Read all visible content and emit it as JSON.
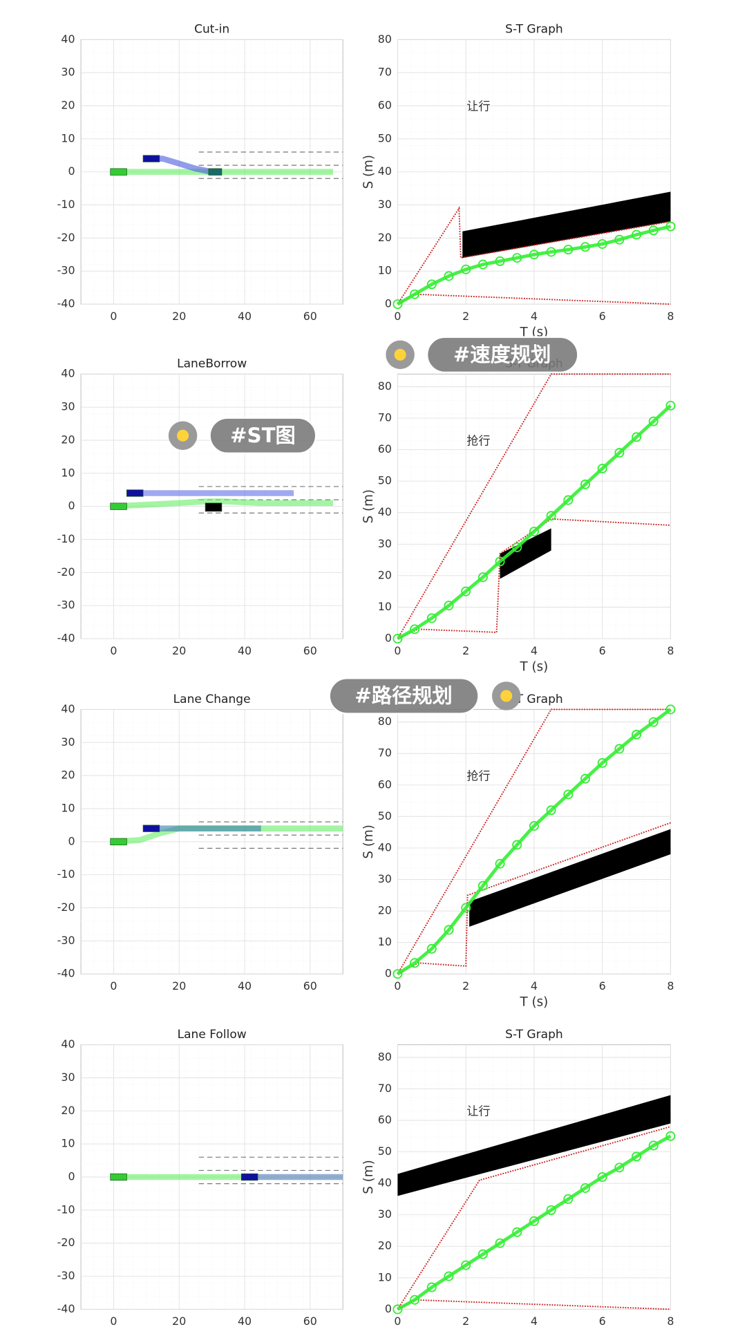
{
  "chart_data": [
    {
      "type": "path",
      "title": "Cut-in",
      "xlim": [
        -10,
        70
      ],
      "ylim": [
        -40,
        40
      ],
      "xticks": [
        0,
        20,
        40,
        60
      ],
      "yticks": [
        -40,
        -30,
        -20,
        -10,
        0,
        10,
        20,
        30,
        40
      ],
      "grid": true,
      "lane_lines": [
        6,
        2,
        -2
      ],
      "series": [
        {
          "color": "#66ee66",
          "x": [
            0,
            67
          ],
          "values": [
            0,
            0
          ]
        },
        {
          "color": "#4a5ae0",
          "x": [
            10,
            15,
            20,
            25,
            30,
            33
          ],
          "values": [
            4,
            4,
            2.5,
            1,
            0,
            0
          ]
        }
      ],
      "boxes": [
        {
          "color": "#33cc33",
          "x": [
            -1,
            4
          ],
          "y": [
            -1,
            1
          ]
        },
        {
          "color": "#1010a0",
          "x": [
            9,
            14
          ],
          "y": [
            3,
            5
          ]
        },
        {
          "color": "#1a6a6a",
          "x": [
            29,
            33
          ],
          "y": [
            -1,
            1
          ]
        }
      ]
    },
    {
      "type": "st",
      "title": "S-T Graph",
      "annotation": "让行",
      "xlabel": "T (s)",
      "ylabel": "S (m)",
      "xlim": [
        0,
        8
      ],
      "ylim": [
        0,
        80
      ],
      "xticks": [
        0,
        2,
        4,
        6,
        8
      ],
      "yticks": [
        0,
        10,
        20,
        30,
        40,
        50,
        60,
        70,
        80
      ],
      "grid": true,
      "series": [
        {
          "color": "#cc2222",
          "x": [
            0,
            1.8,
            1.85,
            8
          ],
          "values": [
            0,
            29,
            14,
            25
          ]
        },
        {
          "color": "#cc2222",
          "x": [
            0,
            0.5,
            8
          ],
          "values": [
            0,
            3,
            0
          ]
        },
        {
          "color": "#33ee33",
          "marker": "circle",
          "x": [
            0,
            0.5,
            1,
            1.5,
            2,
            2.5,
            3,
            3.5,
            4,
            4.5,
            5,
            5.5,
            6,
            6.5,
            7,
            7.5,
            8
          ],
          "values": [
            0,
            3,
            6,
            8.5,
            10.5,
            12,
            13,
            14,
            15,
            15.8,
            16.5,
            17.3,
            18.2,
            19.5,
            21,
            22.3,
            23.5
          ]
        }
      ],
      "obstacles": [
        {
          "color": "#000000",
          "t": [
            1.9,
            8,
            8,
            1.9
          ],
          "s": [
            22,
            34,
            25,
            14
          ]
        }
      ]
    },
    {
      "type": "path",
      "title": "LaneBorrow",
      "xlim": [
        -10,
        70
      ],
      "ylim": [
        -40,
        40
      ],
      "xticks": [
        0,
        20,
        40,
        60
      ],
      "yticks": [
        -40,
        -30,
        -20,
        -10,
        0,
        10,
        20,
        30,
        40
      ],
      "grid": true,
      "lane_lines": [
        6,
        2,
        -2
      ],
      "series": [
        {
          "color": "#66ee66",
          "x": [
            0,
            20,
            28,
            34,
            45,
            67
          ],
          "values": [
            0,
            1,
            1.5,
            1.5,
            1,
            1
          ]
        },
        {
          "color": "#6070e8",
          "x": [
            4,
            55
          ],
          "values": [
            4,
            4
          ]
        }
      ],
      "boxes": [
        {
          "color": "#33cc33",
          "x": [
            -1,
            4
          ],
          "y": [
            -1,
            1
          ]
        },
        {
          "color": "#1010a0",
          "x": [
            4,
            9
          ],
          "y": [
            3,
            5
          ]
        },
        {
          "color": "#000000",
          "x": [
            28,
            33
          ],
          "y": [
            -1.5,
            1
          ]
        }
      ]
    },
    {
      "type": "st",
      "title": "S-T Graph",
      "annotation": "抢行",
      "xlabel": "T (s)",
      "ylabel": "S (m)",
      "xlim": [
        0,
        8
      ],
      "ylim": [
        0,
        84
      ],
      "xticks": [
        0,
        2,
        4,
        6,
        8
      ],
      "yticks": [
        0,
        10,
        20,
        30,
        40,
        50,
        60,
        70,
        80
      ],
      "grid": true,
      "series": [
        {
          "color": "#cc2222",
          "x": [
            0,
            4.5,
            8
          ],
          "values": [
            0,
            84,
            84
          ]
        },
        {
          "color": "#cc2222",
          "x": [
            0,
            0.6,
            2.9,
            3,
            4.5,
            8
          ],
          "values": [
            0,
            3,
            2,
            27,
            38,
            36
          ]
        },
        {
          "color": "#33ee33",
          "marker": "circle",
          "x": [
            0,
            0.5,
            1,
            1.5,
            2,
            2.5,
            3,
            3.5,
            4,
            4.5,
            5,
            5.5,
            6,
            6.5,
            7,
            7.5,
            8
          ],
          "values": [
            0,
            3,
            6.5,
            10.5,
            15,
            19.5,
            24.5,
            29,
            34,
            39,
            44,
            49,
            54,
            59,
            64,
            69,
            74
          ]
        }
      ],
      "obstacles": [
        {
          "color": "#000000",
          "t": [
            3,
            4.5,
            4.5,
            3
          ],
          "s": [
            27,
            35,
            28,
            19
          ]
        }
      ]
    },
    {
      "type": "path",
      "title": "Lane Change",
      "xlim": [
        -10,
        70
      ],
      "ylim": [
        -40,
        40
      ],
      "xticks": [
        0,
        20,
        40,
        60
      ],
      "yticks": [
        -40,
        -30,
        -20,
        -10,
        0,
        10,
        20,
        30,
        40
      ],
      "grid": true,
      "lane_lines": [
        6,
        2,
        -2
      ],
      "series": [
        {
          "color": "#66ee66",
          "x": [
            0,
            8,
            14,
            20,
            70
          ],
          "values": [
            0,
            0.5,
            2.5,
            4,
            4
          ]
        },
        {
          "color": "#3a7ab0",
          "x": [
            9,
            45
          ],
          "values": [
            4,
            4
          ]
        }
      ],
      "boxes": [
        {
          "color": "#33cc33",
          "x": [
            -1,
            4
          ],
          "y": [
            -1,
            1
          ]
        },
        {
          "color": "#1010a0",
          "x": [
            9,
            14
          ],
          "y": [
            3,
            5
          ]
        }
      ]
    },
    {
      "type": "st",
      "title": "S-T Graph",
      "annotation": "抢行",
      "xlabel": "T (s)",
      "ylabel": "S (m)",
      "xlim": [
        0,
        8
      ],
      "ylim": [
        0,
        84
      ],
      "xticks": [
        0,
        2,
        4,
        6,
        8
      ],
      "yticks": [
        0,
        10,
        20,
        30,
        40,
        50,
        60,
        70,
        80
      ],
      "grid": true,
      "series": [
        {
          "color": "#cc2222",
          "x": [
            0,
            4.5,
            8
          ],
          "values": [
            0,
            84,
            84
          ]
        },
        {
          "color": "#cc2222",
          "x": [
            0,
            0.6,
            2,
            2.05,
            8
          ],
          "values": [
            0,
            3.5,
            2.5,
            25,
            48
          ]
        },
        {
          "color": "#33ee33",
          "marker": "circle",
          "x": [
            0,
            0.5,
            1,
            1.5,
            2,
            2.5,
            3,
            3.5,
            4,
            4.5,
            5,
            5.5,
            6,
            6.5,
            7,
            7.5,
            8
          ],
          "values": [
            0,
            3.5,
            8,
            14,
            21,
            28,
            35,
            41,
            47,
            52,
            57,
            62,
            67,
            71.5,
            76,
            80,
            84
          ]
        }
      ],
      "obstacles": [
        {
          "color": "#000000",
          "t": [
            2.1,
            8,
            8,
            2.1
          ],
          "s": [
            23,
            46,
            38,
            15
          ]
        }
      ]
    },
    {
      "type": "path",
      "title": "Lane Follow",
      "xlim": [
        -10,
        70
      ],
      "ylim": [
        -40,
        40
      ],
      "xticks": [
        0,
        20,
        40,
        60
      ],
      "yticks": [
        -40,
        -30,
        -20,
        -10,
        0,
        10,
        20,
        30,
        40
      ],
      "grid": true,
      "lane_lines": [
        6,
        2,
        -2
      ],
      "series": [
        {
          "color": "#66ee66",
          "x": [
            0,
            40
          ],
          "values": [
            0,
            0
          ]
        },
        {
          "color": "#4a7ab0",
          "x": [
            40,
            70
          ],
          "values": [
            0,
            0
          ]
        }
      ],
      "boxes": [
        {
          "color": "#33cc33",
          "x": [
            -1,
            4
          ],
          "y": [
            -1,
            1
          ]
        },
        {
          "color": "#1010a0",
          "x": [
            39,
            44
          ],
          "y": [
            -1,
            1
          ]
        }
      ]
    },
    {
      "type": "st",
      "title": "S-T Graph",
      "annotation": "让行",
      "ylabel": "S (m)",
      "xlim": [
        0,
        8
      ],
      "ylim": [
        0,
        84
      ],
      "xticks": [
        0,
        2,
        4,
        6,
        8
      ],
      "yticks": [
        0,
        10,
        20,
        30,
        40,
        50,
        60,
        70,
        80
      ],
      "grid": true,
      "series": [
        {
          "color": "#cc2222",
          "x": [
            0,
            2.4,
            8
          ],
          "values": [
            0,
            41,
            58
          ]
        },
        {
          "color": "#cc2222",
          "x": [
            0,
            0.5,
            8
          ],
          "values": [
            0,
            3,
            0
          ]
        },
        {
          "color": "#33ee33",
          "marker": "circle",
          "x": [
            0,
            0.5,
            1,
            1.5,
            2,
            2.5,
            3,
            3.5,
            4,
            4.5,
            5,
            5.5,
            6,
            6.5,
            7,
            7.5,
            8
          ],
          "values": [
            0,
            3,
            7,
            10.5,
            14,
            17.5,
            21,
            24.5,
            28,
            31.5,
            35,
            38.5,
            42,
            45,
            48.5,
            52,
            55
          ]
        }
      ],
      "obstacles": [
        {
          "color": "#000000",
          "t": [
            0,
            8,
            8,
            0
          ],
          "s": [
            43,
            68,
            59,
            36
          ]
        }
      ]
    }
  ],
  "tags": [
    "#速度规划",
    "#ST图",
    "#路径规划"
  ]
}
